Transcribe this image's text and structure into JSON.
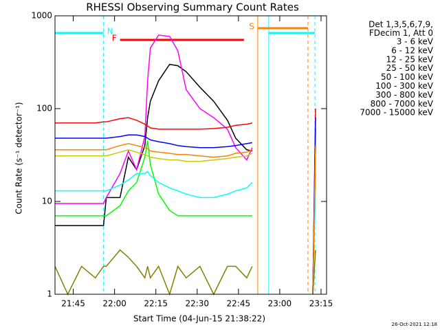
{
  "chart_data": {
    "type": "line",
    "title": "RHESSI Observing Summary Count Rates",
    "xlabel": "Start Time (04-Jun-15 21:38:22)",
    "ylabel": "Count Rate (s⁻¹ detector⁻¹)",
    "footer": "26-Oct-2021 12:18",
    "legend_title": [
      "Det 1,3,5,6,7,9,",
      "FDecim 1, Att 0"
    ],
    "log_y": true,
    "xlim": [
      "21:38:22",
      "23:17"
    ],
    "xticks": [
      "21:45",
      "22:00",
      "22:15",
      "22:30",
      "22:45",
      "23:00",
      "23:15"
    ],
    "ylim": [
      1,
      1000
    ],
    "yticks": [
      1,
      10,
      100,
      1000
    ],
    "x": [
      "21:38:22",
      "21:43",
      "21:48",
      "21:53",
      "21:56",
      "21:57",
      "22:02",
      "22:05",
      "22:08",
      "22:11",
      "22:12",
      "22:13",
      "22:16",
      "22:20",
      "22:23",
      "22:26",
      "22:31",
      "22:36",
      "22:41",
      "22:44",
      "22:48",
      "22:50",
      "23:00",
      "23:12",
      "23:13"
    ],
    "series": [
      {
        "name": "3 - 6 keV",
        "color": "#000000",
        "values": [
          5.5,
          5.5,
          5.5,
          5.5,
          5.5,
          11,
          11,
          30,
          22,
          40,
          80,
          120,
          200,
          300,
          290,
          250,
          170,
          120,
          75,
          48,
          36,
          35,
          null,
          1,
          40
        ]
      },
      {
        "name": "6 - 12 keV",
        "color": "#ff00ff",
        "values": [
          9.5,
          9.5,
          9.5,
          9.5,
          9.5,
          11,
          20,
          35,
          22,
          50,
          200,
          450,
          620,
          600,
          420,
          160,
          100,
          80,
          60,
          38,
          28,
          38,
          null,
          1,
          60
        ]
      },
      {
        "name": "12 - 25 keV",
        "color": "#00ff00",
        "values": [
          7,
          7,
          7,
          7,
          7,
          7,
          9,
          13,
          16,
          30,
          45,
          25,
          12,
          8,
          7,
          7,
          7,
          7,
          7,
          7,
          7,
          7,
          null,
          1,
          20
        ]
      },
      {
        "name": "25 - 50 keV",
        "color": "#00ffff",
        "values": [
          13,
          13,
          13,
          13,
          13,
          13,
          15,
          17,
          20,
          20,
          21,
          19,
          16,
          14,
          13,
          12,
          11,
          11,
          12,
          13,
          14,
          16,
          null,
          1,
          15
        ]
      },
      {
        "name": "50 - 100 keV",
        "color": "#c8c800",
        "values": [
          31,
          31,
          31,
          31,
          31,
          31,
          34,
          36,
          34,
          32,
          31,
          30,
          29,
          28,
          28,
          27,
          27,
          28,
          29,
          30,
          31,
          33,
          null,
          1,
          30
        ]
      },
      {
        "name": "100 - 300 keV",
        "color": "#ff0000",
        "values": [
          70,
          70,
          70,
          70,
          72,
          72,
          78,
          80,
          75,
          68,
          65,
          62,
          60,
          60,
          60,
          60,
          60,
          61,
          63,
          66,
          68,
          70,
          null,
          1,
          100
        ]
      },
      {
        "name": "300 - 800 keV",
        "color": "#0000ff",
        "values": [
          48,
          48,
          48,
          48,
          48,
          48,
          50,
          52,
          52,
          50,
          48,
          46,
          44,
          42,
          40,
          39,
          38,
          38,
          39,
          40,
          42,
          43,
          null,
          1,
          80
        ]
      },
      {
        "name": "800 - 7000 keV",
        "color": "#ff8000",
        "values": [
          36,
          36,
          36,
          36,
          36,
          36,
          40,
          42,
          40,
          38,
          37,
          35,
          34,
          33,
          32,
          32,
          31,
          30,
          31,
          33,
          34,
          36,
          null,
          1,
          40
        ]
      },
      {
        "name": "7000 - 15000 keV",
        "color": "#808000",
        "values": [
          2,
          1,
          2,
          1.5,
          2,
          2,
          3,
          2.5,
          2,
          1.5,
          2,
          1.5,
          2,
          1,
          2,
          1.5,
          2,
          1,
          2,
          2,
          1.5,
          2,
          null,
          1,
          3
        ]
      }
    ],
    "bars": [
      {
        "label": "N",
        "color": "#00ffff",
        "intervals": [
          [
            "21:38:22",
            "21:56"
          ],
          [
            "22:56",
            "23:12:45"
          ]
        ],
        "vertical_lines": true
      },
      {
        "label": "S",
        "color": "#ff8000",
        "intervals": [
          [
            "22:52",
            "23:10:15"
          ]
        ],
        "vertical_lines": true
      },
      {
        "label": "F",
        "color": "#ff0000",
        "intervals": [
          [
            "22:02",
            "22:47"
          ]
        ],
        "vertical_lines": false
      }
    ]
  }
}
